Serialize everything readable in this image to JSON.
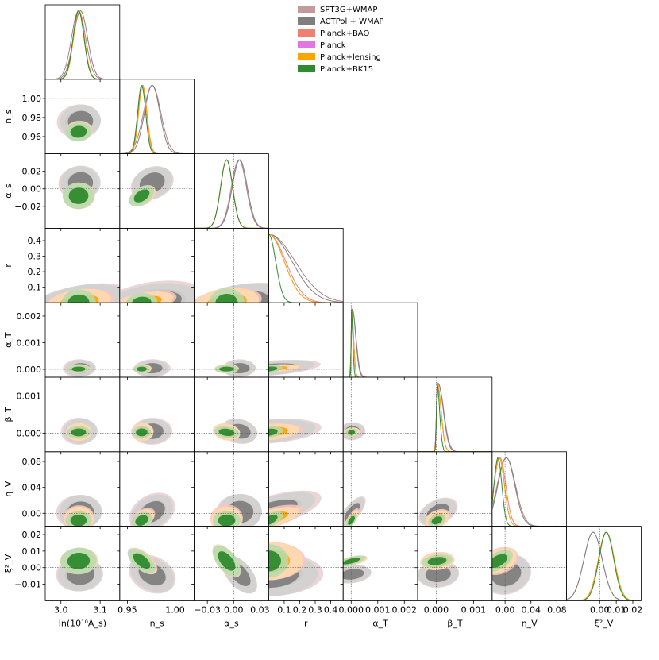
{
  "chart_data": {
    "type": "triangle",
    "parameters": [
      {
        "key": "lnAs",
        "label": "ln(10¹⁰A_s)",
        "range": [
          2.96,
          3.15
        ],
        "ticks": [
          3.0,
          3.1
        ],
        "tick_labels": [
          "3.0",
          "3.1"
        ],
        "ref": null
      },
      {
        "key": "ns",
        "label": "n_s",
        "range": [
          0.942,
          1.02
        ],
        "ticks": [
          0.95,
          1.0
        ],
        "tick_labels": [
          "0.95",
          "1.00"
        ],
        "ref": 1.0,
        "ticks_y": [
          0.96,
          0.98,
          1.0
        ],
        "tick_labels_y": [
          "0.96",
          "0.98",
          "1.00"
        ]
      },
      {
        "key": "alpha_s",
        "label": "α_s",
        "range": [
          -0.045,
          0.04
        ],
        "ticks": [
          -0.03,
          0.0,
          0.03
        ],
        "tick_labels": [
          "−0.03",
          "0.00",
          "0.03"
        ],
        "ref": 0.0,
        "ticks_y": [
          -0.02,
          0.0,
          0.02
        ],
        "tick_labels_y": [
          "−0.02",
          "0.00",
          "0.02"
        ]
      },
      {
        "key": "r",
        "label": "r",
        "range": [
          0.0,
          0.48
        ],
        "ticks": [
          0.1,
          0.2,
          0.3,
          0.4
        ],
        "tick_labels": [
          "0.1",
          "0.2",
          "0.3",
          "0.4"
        ],
        "ref": null
      },
      {
        "key": "alpha_T",
        "label": "α_T",
        "range": [
          -0.0003,
          0.0025
        ],
        "ticks": [
          0.0,
          0.001,
          0.002
        ],
        "tick_labels": [
          "0.000",
          "0.001",
          "0.002"
        ],
        "ref": 0.0
      },
      {
        "key": "beta_T",
        "label": "β_T",
        "range": [
          -0.0005,
          0.0015
        ],
        "ticks": [
          0.0,
          0.001
        ],
        "tick_labels": [
          "0.000",
          "0.001"
        ],
        "ref": 0.0
      },
      {
        "key": "eta_V",
        "label": "η_V",
        "range": [
          -0.02,
          0.095
        ],
        "ticks": [
          0.0,
          0.04,
          0.08
        ],
        "tick_labels": [
          "0.00",
          "0.04",
          "0.08"
        ],
        "ref": 0.0
      },
      {
        "key": "xi2_V",
        "label": "ξ²_V",
        "range": [
          -0.02,
          0.025
        ],
        "ticks": [
          0.0,
          0.01,
          0.02
        ],
        "tick_labels": [
          "0.00",
          "0.01",
          "0.02"
        ],
        "ref": 0.0,
        "ticks_y": [
          -0.01,
          0.0,
          0.01,
          0.02
        ],
        "tick_labels_y": [
          "−0.01",
          "0.00",
          "0.01",
          "0.02"
        ]
      }
    ],
    "legend": {
      "placement": "top-center",
      "entries": [
        {
          "name": "SPT3G+WMAP",
          "color": "#c49a9e"
        },
        {
          "name": "ACTPol + WMAP",
          "color": "#7f7f7f"
        },
        {
          "name": "Planck+BAO",
          "color": "#f08070"
        },
        {
          "name": "Planck",
          "color": "#e078e0"
        },
        {
          "name": "Planck+lensing",
          "color": "#ffa500"
        },
        {
          "name": "Planck+BK15",
          "color": "#2e8b2e"
        }
      ]
    },
    "series_style": {
      "SPT3G+WMAP": {
        "outer": "#e6cfd0",
        "inner": "#c9a4a7",
        "line": "#b08084"
      },
      "ACTPol + WMAP": {
        "outer": "#d0d0d0",
        "inner": "#808080",
        "line": "#808080"
      },
      "Planck+BAO": {
        "outer": "#f9c7bf",
        "inner": "#f08070",
        "line": "#f08070"
      },
      "Planck": {
        "outer": "#f2c2f0",
        "inner": "#e078e0",
        "line": "#e078e0"
      },
      "Planck+lensing": {
        "outer": "#ffdca6",
        "inner": "#ffa500",
        "line": "#ffa500"
      },
      "Planck+BK15": {
        "outer": "#b6dcb0",
        "inner": "#2e8b2e",
        "line": "#2e8b2e"
      }
    },
    "posteriors_1d": {
      "lnAs": {
        "SPT3G+WMAP": [
          3.045,
          0.018
        ],
        "ACTPol + WMAP": [
          3.05,
          0.018
        ],
        "Planck+BAO": [
          3.046,
          0.014
        ],
        "Planck": [
          3.045,
          0.014
        ],
        "Planck+lensing": [
          3.046,
          0.014
        ],
        "Planck+BK15": [
          3.045,
          0.014
        ]
      },
      "ns": {
        "SPT3G+WMAP": [
          0.976,
          0.009
        ],
        "ACTPol + WMAP": [
          0.976,
          0.008
        ],
        "Planck+BAO": [
          0.966,
          0.0045
        ],
        "Planck": [
          0.965,
          0.0042
        ],
        "Planck+lensing": [
          0.966,
          0.0042
        ],
        "Planck+BK15": [
          0.965,
          0.0042
        ]
      },
      "alpha_s": {
        "SPT3G+WMAP": [
          0.006,
          0.0085
        ],
        "ACTPol + WMAP": [
          0.007,
          0.0085
        ],
        "Planck+BAO": [
          -0.008,
          0.0068
        ],
        "Planck": [
          -0.008,
          0.0068
        ],
        "Planck+lensing": [
          -0.008,
          0.0068
        ],
        "Planck+BK15": [
          -0.008,
          0.0068
        ]
      },
      "r": {
        "SPT3G+WMAP": [
          0.0,
          0.17
        ],
        "ACTPol + WMAP": [
          0.0,
          0.15
        ],
        "Planck+BAO": [
          0.0,
          0.11
        ],
        "Planck": [
          0.0,
          0.1
        ],
        "Planck+lensing": [
          0.0,
          0.1
        ],
        "Planck+BK15": [
          0.0,
          0.045
        ]
      },
      "alpha_T": {
        "SPT3G+WMAP": [
          4e-05,
          0.00014
        ],
        "ACTPol + WMAP": [
          4e-05,
          0.00013
        ],
        "Planck+BAO": [
          2e-05,
          7e-05
        ],
        "Planck": [
          2e-05,
          7e-05
        ],
        "Planck+lensing": [
          2e-05,
          7e-05
        ],
        "Planck+BK15": [
          1e-05,
          5e-05
        ]
      },
      "beta_T": {
        "SPT3G+WMAP": [
          5e-05,
          0.00015
        ],
        "ACTPol + WMAP": [
          5e-05,
          0.00014
        ],
        "Planck+BAO": [
          3e-05,
          0.0001
        ],
        "Planck": [
          3e-05,
          0.0001
        ],
        "Planck+lensing": [
          3e-05,
          0.0001
        ],
        "Planck+BK15": [
          2e-05,
          7e-05
        ]
      },
      "eta_V": {
        "SPT3G+WMAP": [
          0.002,
          0.014
        ],
        "ACTPol + WMAP": [
          0.002,
          0.013
        ],
        "Planck+BAO": [
          -0.008,
          0.009
        ],
        "Planck": [
          -0.009,
          0.008
        ],
        "Planck+lensing": [
          -0.009,
          0.008
        ],
        "Planck+BK15": [
          -0.011,
          0.006
        ]
      },
      "xi2_V": {
        "SPT3G+WMAP": [
          -0.004,
          0.0055
        ],
        "ACTPol + WMAP": [
          -0.004,
          0.0055
        ],
        "Planck+BAO": [
          0.004,
          0.0048
        ],
        "Planck": [
          0.004,
          0.0048
        ],
        "Planck+lensing": [
          0.004,
          0.0048
        ],
        "Planck+BK15": [
          0.004,
          0.0045
        ]
      }
    },
    "grid": false
  }
}
